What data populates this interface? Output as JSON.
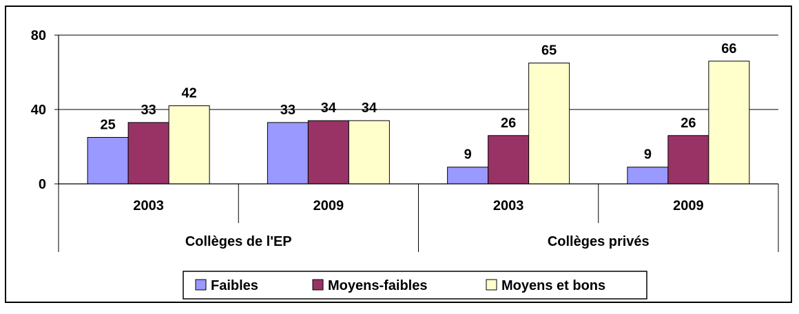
{
  "chart_data": {
    "type": "bar",
    "title": "",
    "xlabel": "",
    "ylabel": "",
    "ylim": [
      0,
      80
    ],
    "yticks": [
      0,
      40,
      80
    ],
    "grid": true,
    "legend_position": "bottom",
    "groups": [
      {
        "label": "Collèges de l'EP",
        "categories": [
          "2003",
          "2009"
        ]
      },
      {
        "label": "Collèges privés",
        "categories": [
          "2003",
          "2009"
        ]
      }
    ],
    "categories": [
      "2003",
      "2009",
      "2003",
      "2009"
    ],
    "series": [
      {
        "name": "Faibles",
        "color": "#9999ff",
        "values": [
          25,
          33,
          9,
          9
        ]
      },
      {
        "name": "Moyens-faibles",
        "color": "#993366",
        "values": [
          33,
          34,
          26,
          26
        ]
      },
      {
        "name": "Moyens et bons",
        "color": "#ffffcc",
        "values": [
          42,
          34,
          65,
          66
        ]
      }
    ]
  }
}
